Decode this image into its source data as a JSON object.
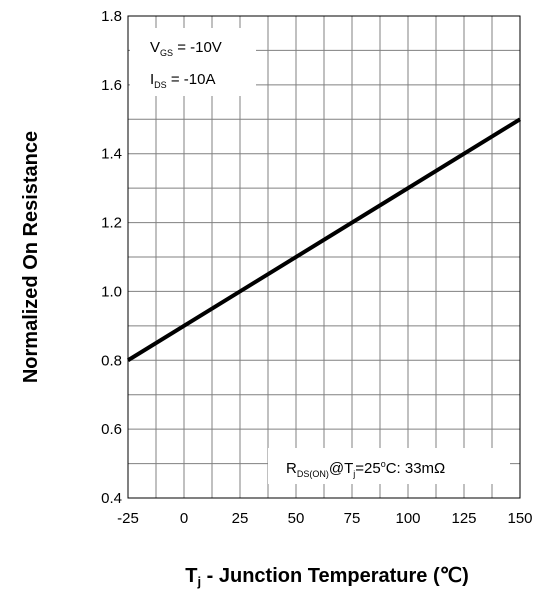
{
  "chart_data": {
    "type": "line",
    "title": "",
    "xlabel": {
      "main": "T",
      "sub": "j",
      "rest": " - Junction Temperature (℃)"
    },
    "ylabel": "Normalized On Resistance",
    "xlim": [
      -25,
      150
    ],
    "ylim": [
      0.4,
      1.8
    ],
    "x_ticks": [
      -25,
      0,
      25,
      50,
      75,
      100,
      125,
      150
    ],
    "x_tick_labels": [
      "-25",
      "0",
      "25",
      "50",
      "75",
      "100",
      "125",
      "150"
    ],
    "y_ticks": [
      0.4,
      0.6,
      0.8,
      1.0,
      1.2,
      1.4,
      1.6,
      1.8
    ],
    "y_tick_labels": [
      "0.4",
      "0.6",
      "0.8",
      "1.0",
      "1.2",
      "1.4",
      "1.6",
      "1.8"
    ],
    "grid": true,
    "minor_grid": {
      "x_step": 12.5,
      "y_step": 0.1
    },
    "series": [
      {
        "x": [
          -25,
          150
        ],
        "y": [
          0.8,
          1.5
        ]
      }
    ],
    "annotations": {
      "conditions": [
        {
          "main": "V",
          "sub": "GS",
          "rest": " = -10V"
        },
        {
          "main": "I",
          "sub": "DS",
          "rest": " = -10A"
        }
      ],
      "rds": {
        "p1": "R",
        "p1_sub": "DS(ON)",
        "p2": "@T",
        "p2_sub": "j",
        "p3": "=25",
        "p3_sup": "o",
        "p4": "C: 33mΩ"
      }
    },
    "colors": {
      "line": "#000000",
      "grid": "#808080",
      "frame": "#000000"
    }
  }
}
